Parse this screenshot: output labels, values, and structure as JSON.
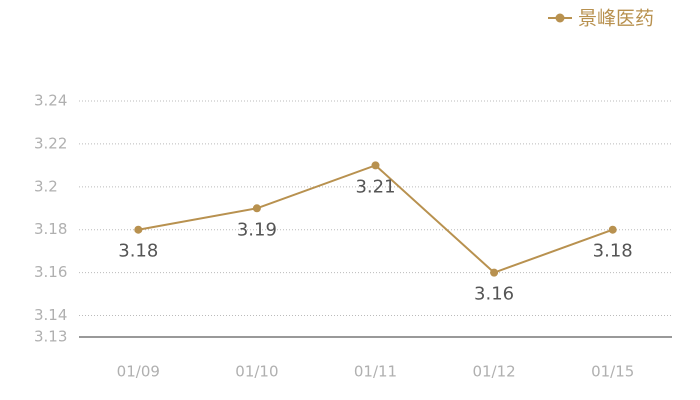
{
  "chart_data": {
    "type": "line",
    "categories": [
      "01/09",
      "01/10",
      "01/11",
      "01/12",
      "01/15"
    ],
    "series": [
      {
        "name": "景峰医药",
        "color": "#b8914f",
        "values": [
          3.18,
          3.19,
          3.21,
          3.16,
          3.18
        ]
      }
    ],
    "ylim": [
      3.13,
      3.24
    ],
    "yticks": [
      3.13,
      3.14,
      3.16,
      3.18,
      3.2,
      3.22,
      3.24
    ],
    "grid": true,
    "legend": "top-right",
    "data_labels": true
  }
}
